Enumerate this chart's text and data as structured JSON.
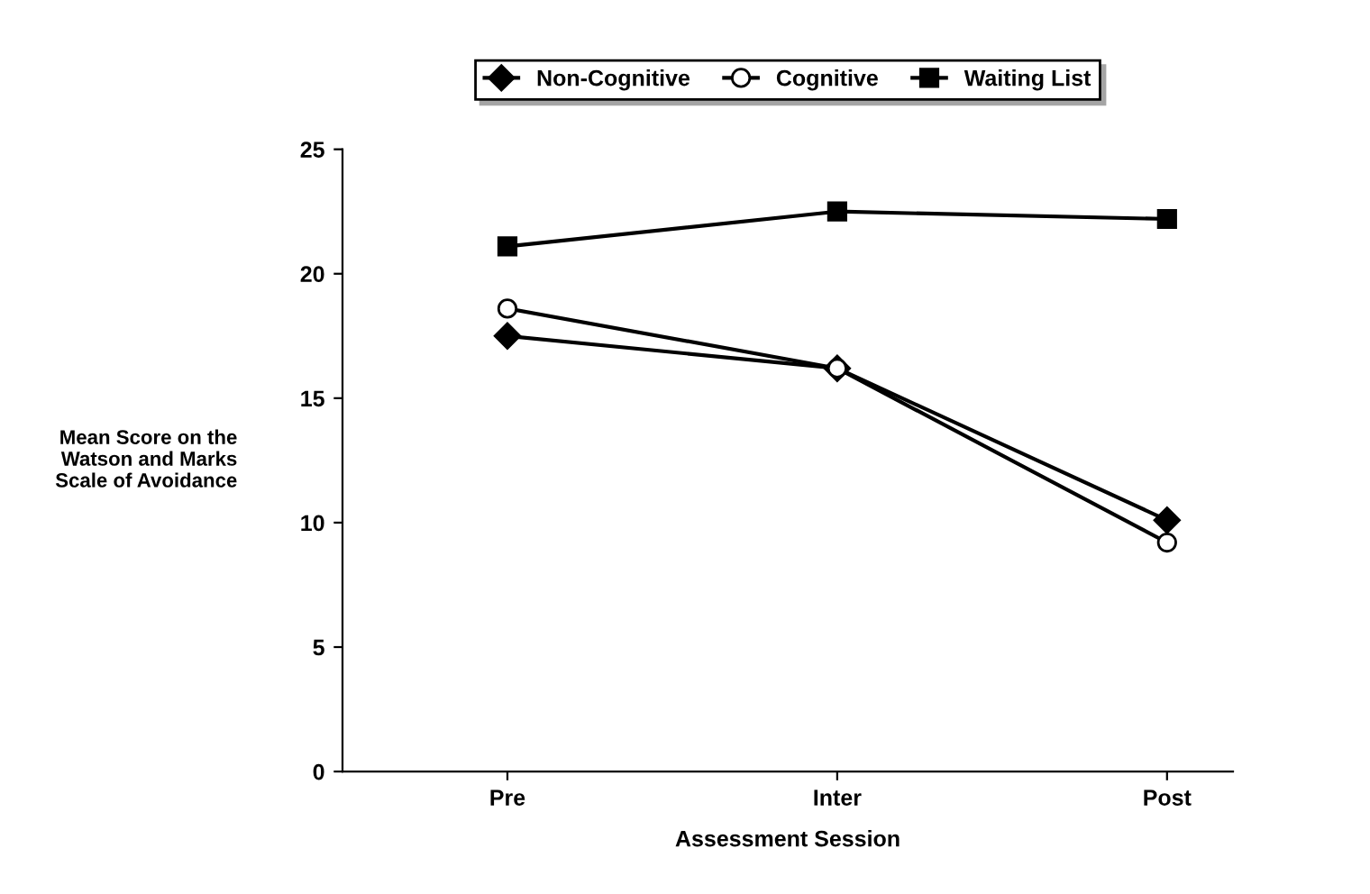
{
  "chart_data": {
    "type": "line",
    "xlabel": "Assessment Session",
    "ylabel": "Mean Score on the\nWatson and Marks\nScale of Avoidance",
    "categories": [
      "Pre",
      "Inter",
      "Post"
    ],
    "series": [
      {
        "name": "Non-Cognitive",
        "color": "#000000",
        "marker": "diamond",
        "values": [
          17.5,
          16.2,
          10.1
        ]
      },
      {
        "name": "Cognitive",
        "color": "#000000",
        "marker": "circle",
        "values": [
          18.6,
          16.2,
          9.2
        ]
      },
      {
        "name": "Waiting List",
        "color": "#000000",
        "marker": "square",
        "values": [
          21.1,
          22.5,
          22.2
        ]
      }
    ],
    "ylim": [
      0,
      25
    ],
    "yticks": [
      0,
      5,
      10,
      15,
      20,
      25
    ],
    "grid": false,
    "legend": "top",
    "line_style": "solid"
  }
}
